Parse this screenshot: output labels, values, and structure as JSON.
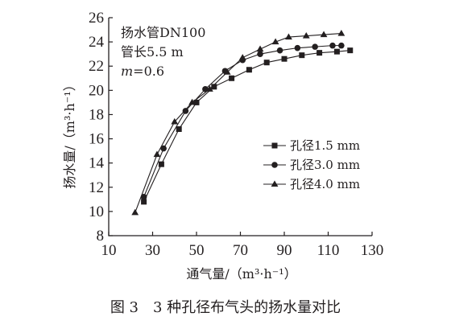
{
  "chart_data": {
    "type": "line",
    "annotations": [
      "扬水管DN100",
      "管长5.5 m",
      "m=0.6"
    ],
    "xlabel": "通气量/（m³·h⁻¹）",
    "ylabel": "扬水量/（m³·h⁻¹）",
    "xlim": [
      10,
      130
    ],
    "ylim": [
      8,
      26
    ],
    "xticks": [
      10,
      30,
      50,
      70,
      90,
      110,
      130
    ],
    "yticks": [
      8,
      10,
      12,
      14,
      16,
      18,
      20,
      22,
      24,
      26
    ],
    "grid": false,
    "legend_position": "right",
    "series": [
      {
        "name": "孔径1.5 mm",
        "marker": "square",
        "x": [
          26,
          34,
          42,
          50,
          58,
          66,
          74,
          82,
          90,
          98,
          106,
          114,
          120
        ],
        "y": [
          10.8,
          13.9,
          16.8,
          19.0,
          20.3,
          21.0,
          21.7,
          22.3,
          22.6,
          22.9,
          23.1,
          23.2,
          23.3
        ]
      },
      {
        "name": "孔径3.0 mm",
        "marker": "circle",
        "x": [
          26,
          35,
          45,
          54,
          63,
          71,
          79,
          88,
          96,
          104,
          112,
          116
        ],
        "y": [
          11.2,
          15.2,
          18.3,
          20.1,
          21.6,
          22.5,
          23.0,
          23.3,
          23.5,
          23.6,
          23.7,
          23.7
        ]
      },
      {
        "name": "孔径4.0 mm",
        "marker": "triangle",
        "x": [
          22,
          32,
          40,
          48,
          56,
          64,
          71,
          79,
          86,
          92,
          100,
          108,
          116
        ],
        "y": [
          9.9,
          14.7,
          17.4,
          19.0,
          20.1,
          21.5,
          22.7,
          23.4,
          24.0,
          24.4,
          24.5,
          24.6,
          24.7
        ]
      }
    ]
  },
  "caption": "图 3　3 种孔径布气头的扬水量对比"
}
